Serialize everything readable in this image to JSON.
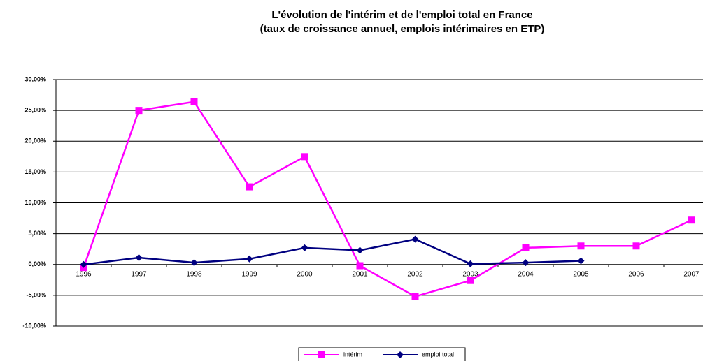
{
  "chart_data": {
    "type": "line",
    "title": "L'évolution de l'intérim et de l'emploi total en France",
    "subtitle": "(taux de croissance annuel, emplois intérimaires en ETP)",
    "categories": [
      "1996",
      "1997",
      "1998",
      "1999",
      "2000",
      "2001",
      "2002",
      "2003",
      "2004",
      "2005",
      "2006",
      "2007"
    ],
    "series": [
      {
        "name": "intérim",
        "color": "#ff00ff",
        "marker": "square",
        "values": [
          -0.5,
          25.0,
          26.4,
          12.6,
          17.5,
          -0.2,
          -5.2,
          -2.6,
          2.7,
          3.0,
          3.0,
          7.2
        ]
      },
      {
        "name": "emploi total",
        "color": "#000080",
        "marker": "diamond",
        "values": [
          0.0,
          1.1,
          0.3,
          0.9,
          2.7,
          2.3,
          4.1,
          0.1,
          0.3,
          0.6,
          null,
          null
        ]
      }
    ],
    "ylim": [
      -10,
      30
    ],
    "yticks": [
      {
        "value": 30,
        "label": "30,00%"
      },
      {
        "value": 25,
        "label": "25,00%"
      },
      {
        "value": 20,
        "label": "20,00%"
      },
      {
        "value": 15,
        "label": "15,00%"
      },
      {
        "value": 10,
        "label": "10,00%"
      },
      {
        "value": 5,
        "label": "5,00%"
      },
      {
        "value": 0,
        "label": "0,00%"
      },
      {
        "value": -5,
        "label": "-5,00%"
      },
      {
        "value": -10,
        "label": "-10,00%"
      }
    ],
    "grid": true,
    "legend": "bottom"
  }
}
